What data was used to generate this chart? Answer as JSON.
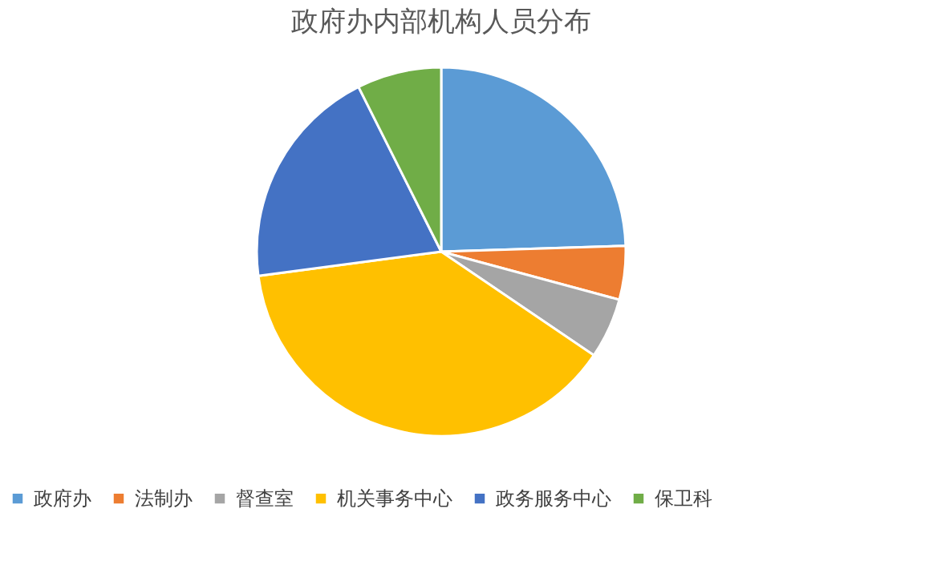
{
  "chart_data": {
    "type": "pie",
    "title": "政府办内部机构人员分布",
    "categories": [
      "政府办",
      "法制办",
      "督查室",
      "机关事务中心",
      "政务服务中心",
      "保卫科"
    ],
    "values": [
      24.5,
      4.7,
      5.3,
      38.4,
      19.7,
      7.4
    ],
    "colors": [
      "#5b9bd5",
      "#ed7d31",
      "#a5a5a5",
      "#ffc000",
      "#4472c4",
      "#70ad47"
    ],
    "legend": "bottom"
  }
}
